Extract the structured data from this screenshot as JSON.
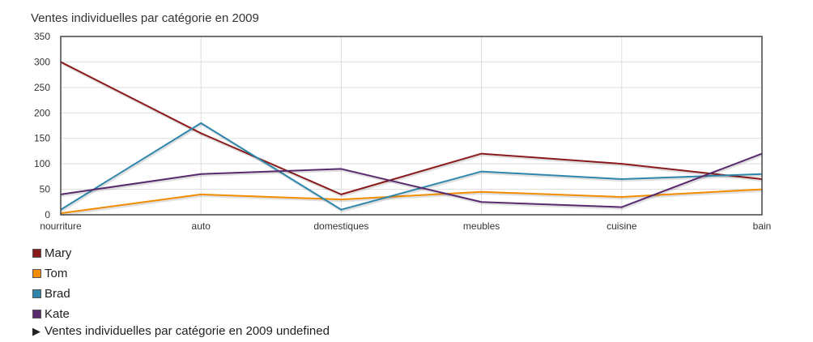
{
  "chart_data": {
    "type": "line",
    "title": "Ventes individuelles par catégorie en 2009",
    "categories": [
      "nourriture",
      "auto",
      "domestiques",
      "meubles",
      "cuisine",
      "bain"
    ],
    "ylim": [
      0,
      350
    ],
    "yticks": [
      0,
      50,
      100,
      150,
      200,
      250,
      300,
      350
    ],
    "grid": true,
    "legend_position": "bottom-left",
    "series": [
      {
        "name": "Mary",
        "color": "#8b1a1a",
        "values": [
          300,
          160,
          40,
          120,
          100,
          70
        ]
      },
      {
        "name": "Tom",
        "color": "#f28c00",
        "values": [
          3,
          40,
          30,
          45,
          35,
          50
        ]
      },
      {
        "name": "Brad",
        "color": "#2e86ab",
        "values": [
          10,
          180,
          10,
          85,
          70,
          80
        ]
      },
      {
        "name": "Kate",
        "color": "#5a2a6e",
        "values": [
          40,
          80,
          90,
          25,
          15,
          120
        ]
      }
    ]
  },
  "toggle": {
    "arrow": "▶",
    "label": "Ventes individuelles par catégorie en 2009 undefined"
  }
}
